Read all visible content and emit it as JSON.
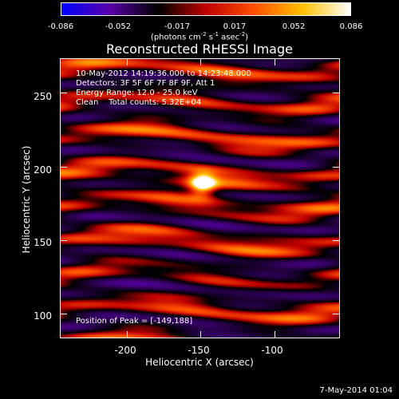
{
  "colorbar": {
    "ticks": [
      "-0.086",
      "-0.052",
      "-0.017",
      "0.017",
      "0.052",
      "0.086"
    ],
    "unit_html": "(photons cm<sup>-2</sup> s<sup>-1</sup> asec<sup>-2</sup>)"
  },
  "annotations": {
    "time_range": "10-May-2012 14:19:36.000 to 14:23:48.000",
    "detectors": "Detectors: 3F 5F 6F 7F 8F 9F, Att 1",
    "energy_range": "Energy Range: 12.0 - 25.0 keV",
    "clean_counts": "Clean    Total counts: 5.32E+04",
    "peak_position": "Position of Peak = [-149,188]"
  },
  "footer": {
    "date": "7-May-2014 01:04"
  },
  "chart_data": {
    "type": "heatmap",
    "title": "Reconstructed RHESSI Image",
    "xlabel": "Heliocentric X (arcsec)",
    "ylabel": "Heliocentric Y (arcsec)",
    "xlim": [
      -245,
      -56
    ],
    "ylim": [
      84,
      273
    ],
    "xticks": [
      -200,
      -150,
      -100
    ],
    "yticks": [
      100,
      150,
      200,
      250
    ],
    "color_range": [
      -0.086,
      0.086
    ],
    "colormap": [
      "#0000ff",
      "#5a00a8",
      "#000000",
      "#c00000",
      "#ff5000",
      "#ffc000",
      "#ffffff"
    ],
    "peak": {
      "x": -149,
      "y": 188
    }
  }
}
